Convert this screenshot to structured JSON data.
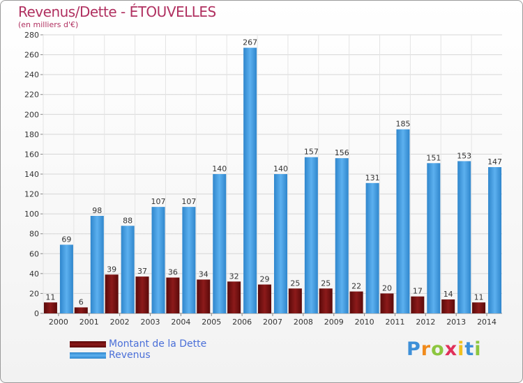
{
  "chart_data": {
    "type": "bar",
    "title": "Revenus/Dette - ÉTOUVELLES",
    "subtitle": "(en milliers d'€)",
    "categories": [
      "2000",
      "2001",
      "2002",
      "2003",
      "2004",
      "2005",
      "2006",
      "2007",
      "2008",
      "2009",
      "2010",
      "2011",
      "2012",
      "2013",
      "2014"
    ],
    "series": [
      {
        "name": "Montant de la Dette",
        "color": "#7a1010",
        "values": [
          11,
          6,
          39,
          37,
          36,
          34,
          32,
          29,
          25,
          25,
          22,
          20,
          17,
          14,
          11
        ]
      },
      {
        "name": "Revenus",
        "color": "#3d9ae0",
        "values": [
          69,
          98,
          88,
          107,
          107,
          140,
          267,
          140,
          157,
          156,
          131,
          185,
          151,
          153,
          147
        ]
      }
    ],
    "ylim": [
      0,
      280
    ],
    "yticks": [
      "0",
      "20",
      "40",
      "60",
      "80",
      "100",
      "120",
      "140",
      "160",
      "180",
      "200",
      "220",
      "240",
      "260",
      "280"
    ],
    "grid": true,
    "legend_position": "bottom-left"
  },
  "logo": {
    "letters": [
      "P",
      "r",
      "o",
      "x",
      "i",
      "t",
      "i"
    ],
    "colors": [
      "#3d8fd8",
      "#f08a1c",
      "#8cc63f",
      "#e0305a",
      "#f0c020",
      "#3d8fd8",
      "#8cc63f"
    ]
  }
}
